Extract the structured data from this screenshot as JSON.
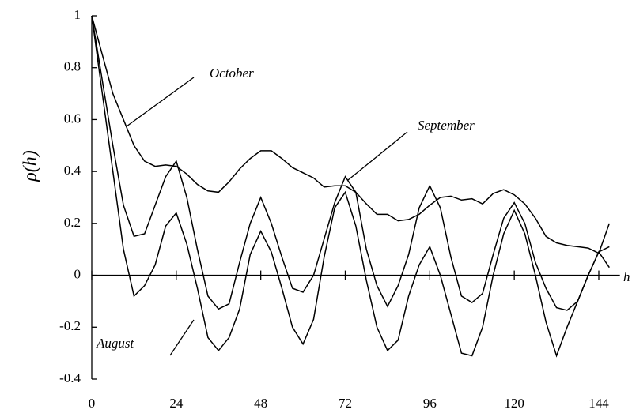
{
  "chart_data": {
    "type": "line",
    "xlabel": "h",
    "ylabel": "ρ(h)",
    "x": [
      0,
      3,
      6,
      9,
      12,
      15,
      18,
      21,
      24,
      27,
      30,
      33,
      36,
      39,
      42,
      45,
      48,
      51,
      54,
      57,
      60,
      63,
      66,
      69,
      72,
      75,
      78,
      81,
      84,
      87,
      90,
      93,
      96,
      99,
      102,
      105,
      108,
      111,
      114,
      117,
      120,
      123,
      126,
      129,
      132,
      135,
      138,
      141,
      144,
      147
    ],
    "series": [
      {
        "name": "October",
        "color": "#000000",
        "values": [
          1,
          0.85,
          0.7,
          0.6,
          0.5,
          0.44,
          0.42,
          0.425,
          0.42,
          0.39,
          0.35,
          0.325,
          0.32,
          0.36,
          0.41,
          0.45,
          0.48,
          0.48,
          0.45,
          0.415,
          0.395,
          0.375,
          0.34,
          0.345,
          0.345,
          0.32,
          0.275,
          0.235,
          0.235,
          0.21,
          0.215,
          0.235,
          0.27,
          0.3,
          0.305,
          0.29,
          0.295,
          0.275,
          0.315,
          0.33,
          0.31,
          0.275,
          0.22,
          0.15,
          0.125,
          0.115,
          0.11,
          0.105,
          0.085,
          0.2
        ]
      },
      {
        "name": "September",
        "color": "#000000",
        "values": [
          1,
          0.75,
          0.5,
          0.27,
          0.15,
          0.16,
          0.27,
          0.38,
          0.44,
          0.3,
          0.1,
          -0.08,
          -0.13,
          -0.11,
          0.05,
          0.2,
          0.3,
          0.2,
          0.07,
          -0.05,
          -0.065,
          0,
          0.14,
          0.28,
          0.38,
          0.32,
          0.1,
          -0.04,
          -0.12,
          -0.04,
          0.08,
          0.26,
          0.345,
          0.26,
          0.07,
          -0.08,
          -0.105,
          -0.07,
          0.08,
          0.22,
          0.28,
          0.2,
          0.05,
          -0.05,
          -0.125,
          -0.135,
          -0.1,
          0,
          0.09,
          0.03
        ]
      },
      {
        "name": "August",
        "color": "#000000",
        "values": [
          1,
          0.7,
          0.4,
          0.1,
          -0.08,
          -0.04,
          0.04,
          0.19,
          0.24,
          0.12,
          -0.05,
          -0.24,
          -0.29,
          -0.24,
          -0.13,
          0.08,
          0.17,
          0.09,
          -0.05,
          -0.2,
          -0.265,
          -0.17,
          0.07,
          0.26,
          0.32,
          0.19,
          -0.02,
          -0.2,
          -0.29,
          -0.25,
          -0.08,
          0.04,
          0.11,
          0,
          -0.15,
          -0.3,
          -0.31,
          -0.2,
          0,
          0.16,
          0.25,
          0.16,
          0,
          -0.18,
          -0.31,
          -0.2,
          -0.1,
          0,
          0.09,
          0.11
        ]
      }
    ],
    "xlim": [
      0,
      150
    ],
    "xticks": [
      0,
      24,
      48,
      72,
      96,
      120,
      144
    ],
    "ylim": [
      -0.4,
      1
    ],
    "yticks": [
      -0.4,
      -0.2,
      0,
      0.2,
      0.4,
      0.6,
      0.8,
      1
    ]
  }
}
